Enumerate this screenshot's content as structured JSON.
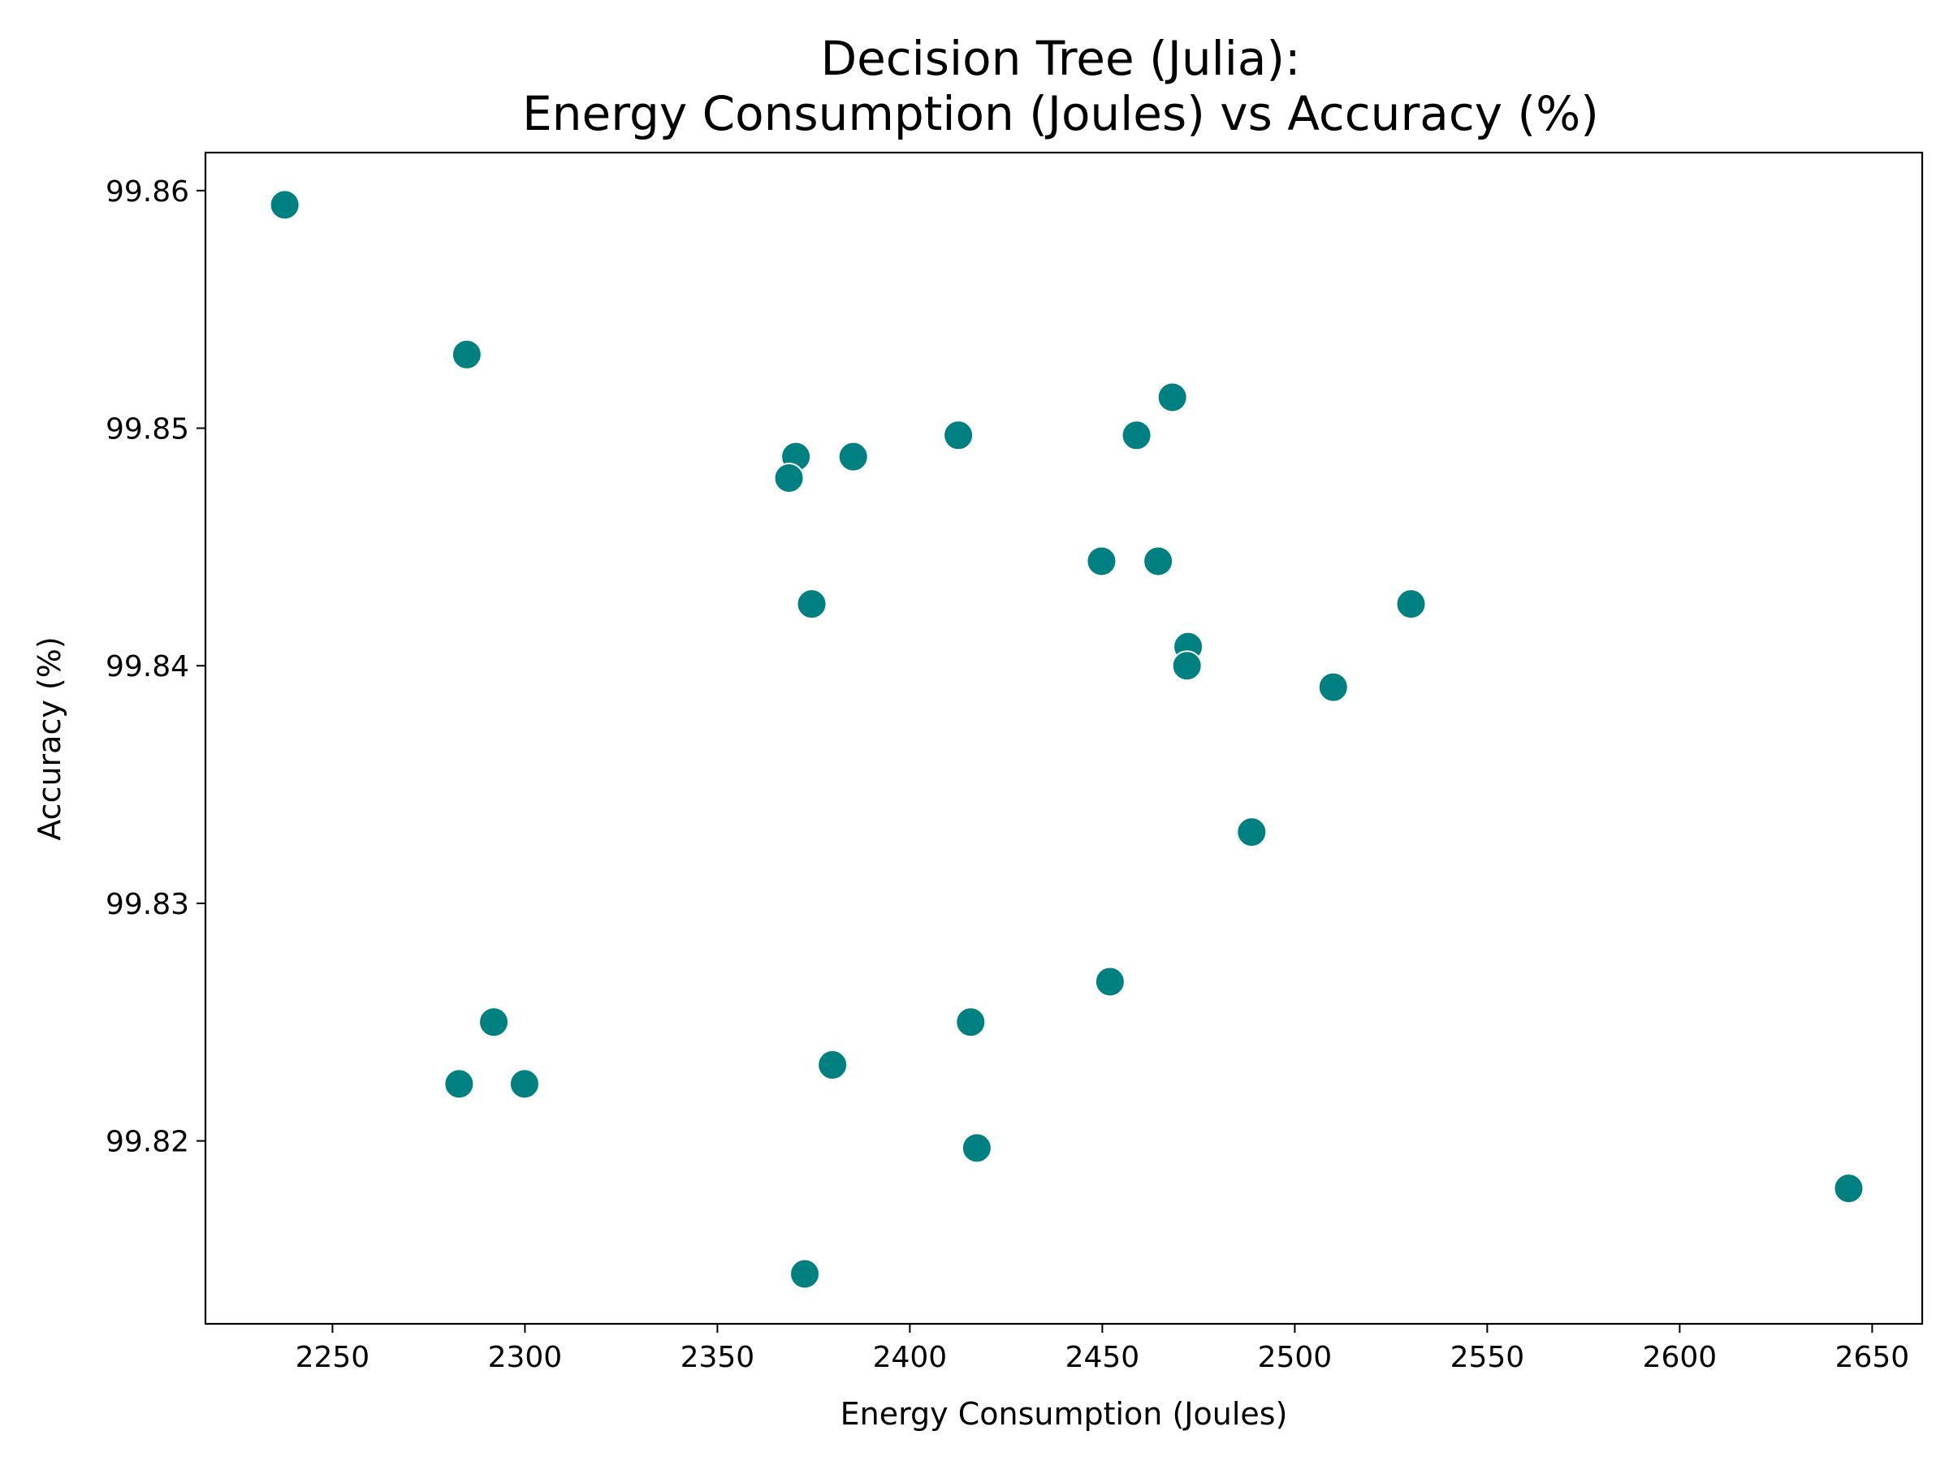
{
  "chart_data": {
    "type": "scatter",
    "title_line1": "Decision Tree (Julia):",
    "title_line2": "Energy Consumption (Joules) vs Accuracy (%)",
    "xlabel": "Energy Consumption (Joules)",
    "ylabel": "Accuracy (%)",
    "xlim": [
      2217,
      2663
    ],
    "ylim": [
      99.8123,
      99.8616
    ],
    "xticks": [
      2250,
      2300,
      2350,
      2400,
      2450,
      2500,
      2550,
      2600,
      2650
    ],
    "yticks": [
      99.82,
      99.83,
      99.84,
      99.85,
      99.86
    ],
    "ytick_labels": [
      "99.82",
      "99.83",
      "99.84",
      "99.85",
      "99.86"
    ],
    "grid": false,
    "marker_color": "#008080",
    "marker_edge_color": "#ffffff",
    "points": [
      {
        "x": 2237.6,
        "y": 99.8594
      },
      {
        "x": 2284.9,
        "y": 99.8531
      },
      {
        "x": 2468.2,
        "y": 99.8513
      },
      {
        "x": 2412.6,
        "y": 99.8497
      },
      {
        "x": 2458.9,
        "y": 99.8497
      },
      {
        "x": 2370.4,
        "y": 99.8488
      },
      {
        "x": 2385.3,
        "y": 99.8488
      },
      {
        "x": 2368.6,
        "y": 99.8479
      },
      {
        "x": 2449.8,
        "y": 99.8444
      },
      {
        "x": 2464.5,
        "y": 99.8444
      },
      {
        "x": 2374.5,
        "y": 99.8426
      },
      {
        "x": 2530.2,
        "y": 99.8426
      },
      {
        "x": 2472.3,
        "y": 99.8408
      },
      {
        "x": 2472.0,
        "y": 99.84
      },
      {
        "x": 2510.0,
        "y": 99.8391
      },
      {
        "x": 2488.8,
        "y": 99.833
      },
      {
        "x": 2452.0,
        "y": 99.8267
      },
      {
        "x": 2291.9,
        "y": 99.825
      },
      {
        "x": 2415.8,
        "y": 99.825
      },
      {
        "x": 2379.9,
        "y": 99.8232
      },
      {
        "x": 2282.9,
        "y": 99.8224
      },
      {
        "x": 2299.9,
        "y": 99.8224
      },
      {
        "x": 2417.4,
        "y": 99.8197
      },
      {
        "x": 2643.9,
        "y": 99.818
      },
      {
        "x": 2372.7,
        "y": 99.8144
      }
    ]
  }
}
